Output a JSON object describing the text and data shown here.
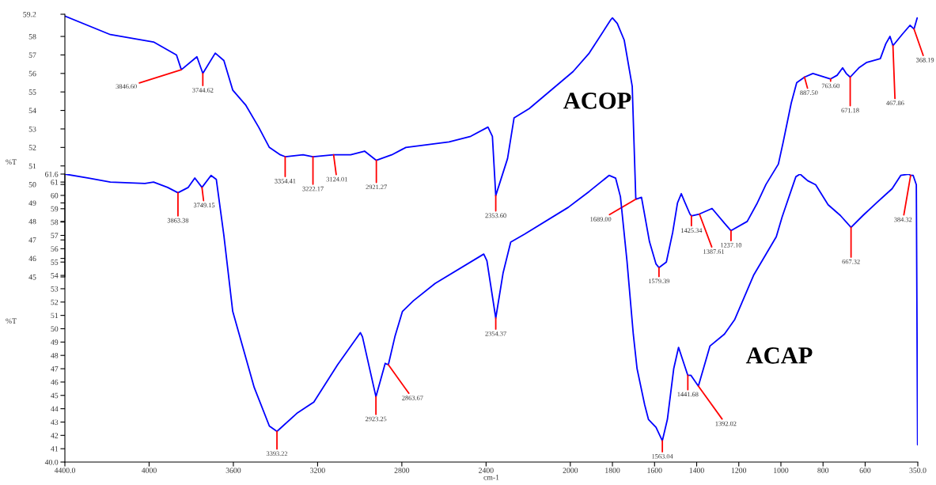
{
  "chart_data": [
    {
      "type": "line",
      "ylabel": "%T",
      "tick_labels": "y",
      "xlim": [
        4400,
        350
      ],
      "ylim": [
        45,
        59.2
      ],
      "yticks": [
        45,
        46,
        47,
        48,
        49,
        50,
        51,
        52,
        53,
        54,
        55,
        56,
        57,
        58,
        59.2
      ],
      "series": [
        {
          "name": "ACOP",
          "color": "#0000ff",
          "x": [
            4400,
            4184,
            3979,
            3870,
            3847,
            3773,
            3745,
            3686,
            3645,
            3603,
            3542,
            3480,
            3429,
            3377,
            3354,
            3269,
            3222,
            3124,
            3043,
            2977,
            2921,
            2848,
            2781,
            2576,
            2473,
            2391,
            2370,
            2354,
            2298,
            2267,
            2195,
            1987,
            1910,
            1808,
            1800,
            1777,
            1744,
            1706,
            1689,
            1662,
            1624,
            1593,
            1579,
            1544,
            1514,
            1491,
            1473,
            1455,
            1432,
            1425,
            1387,
            1327,
            1268,
            1237,
            1160,
            1112,
            1071,
            1012,
            989,
            951,
            925,
            888,
            848,
            764,
            733,
            707,
            690,
            671,
            630,
            592,
            528,
            502,
            482,
            468,
            425,
            387,
            368,
            353
          ],
          "values": [
            59.1,
            58.1,
            57.7,
            57.0,
            56.2,
            56.9,
            56.0,
            57.1,
            56.7,
            55.1,
            54.3,
            53.1,
            52.0,
            51.6,
            51.5,
            51.6,
            51.5,
            51.6,
            51.6,
            51.8,
            51.3,
            51.6,
            52.0,
            52.3,
            52.6,
            53.1,
            52.6,
            49.4,
            51.4,
            53.6,
            54.1,
            56.1,
            57.1,
            58.9,
            59.0,
            58.7,
            57.8,
            55.3,
            49.2,
            49.3,
            46.9,
            45.7,
            45.5,
            45.8,
            47.4,
            49.0,
            49.5,
            49.0,
            48.4,
            48.3,
            48.4,
            48.7,
            47.9,
            47.5,
            48.0,
            49.0,
            50.0,
            51.1,
            52.3,
            54.4,
            55.5,
            55.8,
            56.0,
            55.7,
            55.9,
            56.3,
            56.0,
            55.8,
            56.3,
            56.6,
            56.8,
            57.6,
            58.0,
            57.5,
            58.1,
            58.6,
            58.4,
            59.0
          ]
        }
      ],
      "annotations": [
        {
          "text": "3846.60",
          "x": 3847,
          "y": 56.2
        },
        {
          "text": "3744.62",
          "x": 3745,
          "y": 56.0
        },
        {
          "text": "3354.41",
          "x": 3354,
          "y": 51.5
        },
        {
          "text": "3222.17",
          "x": 3222,
          "y": 51.5
        },
        {
          "text": "3124.01",
          "x": 3124,
          "y": 51.6
        },
        {
          "text": "2921.27",
          "x": 2921,
          "y": 51.3
        },
        {
          "text": "2353.60",
          "x": 2354,
          "y": 49.4
        },
        {
          "text": "1689.00",
          "x": 1689,
          "y": 49.2
        },
        {
          "text": "1579.39",
          "x": 1579,
          "y": 45.5
        },
        {
          "text": "1425.34",
          "x": 1425,
          "y": 48.3
        },
        {
          "text": "1387.61",
          "x": 1387,
          "y": 48.4
        },
        {
          "text": "1237.10",
          "x": 1237,
          "y": 47.5
        },
        {
          "text": "887.50",
          "x": 888,
          "y": 55.8
        },
        {
          "text": "763.60",
          "x": 764,
          "y": 55.7
        },
        {
          "text": "671.18",
          "x": 671,
          "y": 55.8
        },
        {
          "text": "467.86",
          "x": 468,
          "y": 57.5
        },
        {
          "text": "368.19",
          "x": 368,
          "y": 58.4
        }
      ]
    },
    {
      "type": "line",
      "ylabel": "%T",
      "xlabel": "cm-1",
      "xlim": [
        4400,
        350
      ],
      "xticks": [
        {
          "value": 4400,
          "label": "4400.0"
        },
        4000,
        3600,
        3200,
        2800,
        2400,
        2000,
        1800,
        1600,
        1400,
        1200,
        1000,
        800,
        600,
        {
          "value": 350,
          "label": "350.0"
        }
      ],
      "ylim": [
        40,
        61.6
      ],
      "yticks": [
        {
          "value": 40,
          "label": "40.0"
        },
        41,
        42,
        43,
        44,
        45,
        46,
        47,
        48,
        49,
        50,
        51,
        52,
        53,
        54,
        55,
        56,
        57,
        58,
        59,
        60,
        61,
        61.6
      ],
      "series": [
        {
          "name": "ACAP",
          "color": "#0000ff",
          "x": [
            4400,
            4287,
            4184,
            4020,
            3979,
            3912,
            3863,
            3814,
            3783,
            3749,
            3706,
            3681,
            3645,
            3603,
            3501,
            3429,
            3393,
            3295,
            3218,
            3105,
            2997,
            2987,
            2923,
            2879,
            2864,
            2833,
            2797,
            2745,
            2642,
            2411,
            2396,
            2354,
            2319,
            2283,
            2216,
            2010,
            1910,
            1816,
            1785,
            1762,
            1731,
            1701,
            1683,
            1647,
            1629,
            1593,
            1563,
            1539,
            1509,
            1486,
            1465,
            1442,
            1427,
            1392,
            1368,
            1337,
            1268,
            1219,
            1130,
            1022,
            994,
            929,
            909,
            873,
            835,
            776,
            718,
            667,
            610,
            549,
            472,
            431,
            393,
            384,
            372,
            357,
            351
          ],
          "values": [
            61.6,
            61.3,
            61.0,
            60.9,
            61.0,
            60.6,
            60.2,
            60.6,
            61.3,
            60.6,
            61.5,
            61.2,
            57.0,
            51.3,
            45.6,
            42.7,
            42.3,
            43.7,
            44.5,
            47.3,
            49.7,
            49.4,
            44.9,
            47.4,
            47.3,
            49.4,
            51.3,
            52.1,
            53.4,
            55.6,
            55.1,
            50.8,
            54.2,
            56.5,
            57.1,
            59.1,
            60.3,
            61.5,
            61.3,
            59.9,
            55.1,
            49.6,
            47.0,
            44.3,
            43.2,
            42.6,
            41.6,
            43.2,
            47.0,
            48.6,
            47.6,
            46.5,
            46.5,
            45.7,
            47.0,
            48.7,
            49.6,
            50.7,
            54.0,
            56.9,
            58.4,
            61.4,
            61.6,
            61.1,
            60.8,
            59.3,
            58.5,
            57.6,
            58.5,
            59.4,
            60.5,
            61.5,
            61.6,
            61.5,
            61.5,
            60.8,
            41.3
          ]
        }
      ],
      "annotations": [
        {
          "text": "3863.38",
          "x": 3863,
          "y": 60.2
        },
        {
          "text": "3749.15",
          "x": 3749,
          "y": 60.6
        },
        {
          "text": "3393.22",
          "x": 3393,
          "y": 42.3
        },
        {
          "text": "2923.25",
          "x": 2923,
          "y": 44.9
        },
        {
          "text": "2863.67",
          "x": 2864,
          "y": 47.3
        },
        {
          "text": "2354.37",
          "x": 2354,
          "y": 50.8
        },
        {
          "text": "1563.04",
          "x": 1563,
          "y": 41.6
        },
        {
          "text": "1441.68",
          "x": 1442,
          "y": 46.5
        },
        {
          "text": "1392.02",
          "x": 1392,
          "y": 45.7
        },
        {
          "text": "667.32",
          "x": 667,
          "y": 57.6
        },
        {
          "text": "384.32",
          "x": 384,
          "y": 61.5
        }
      ]
    }
  ]
}
